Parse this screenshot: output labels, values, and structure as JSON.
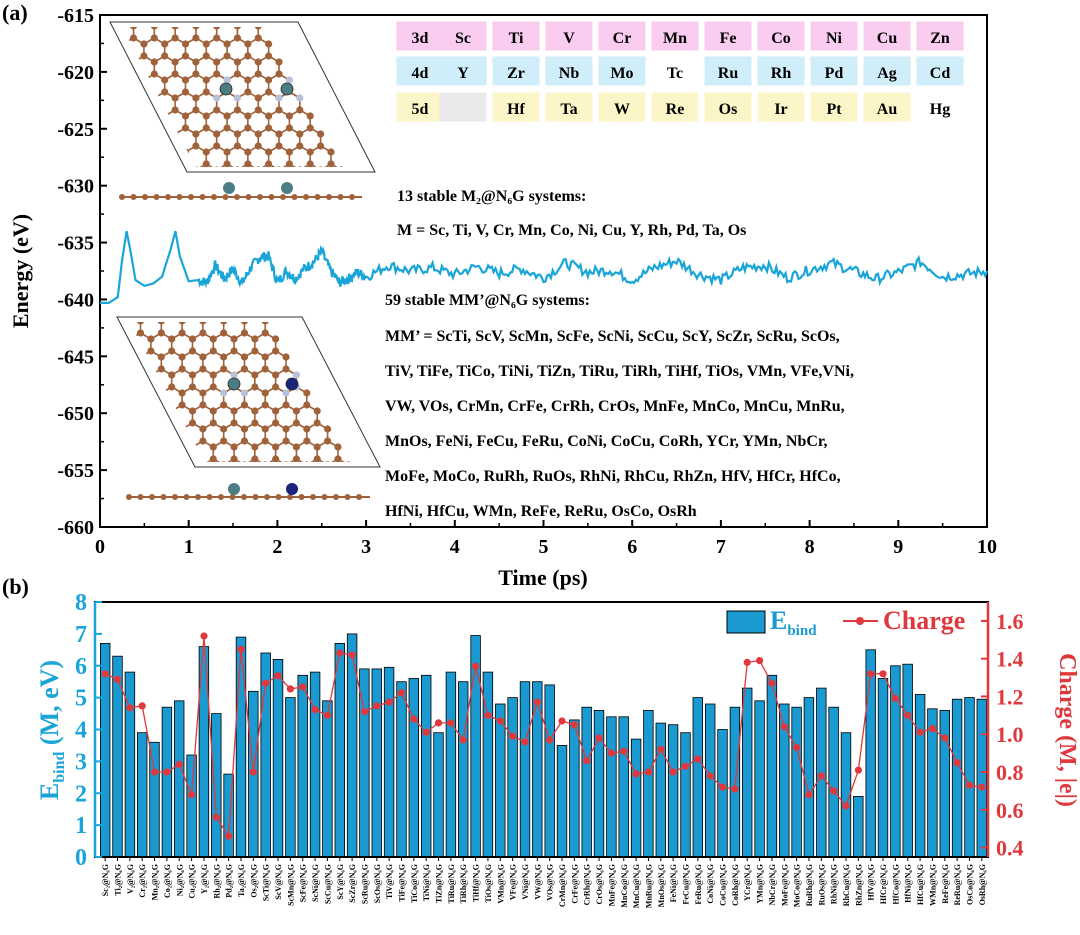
{
  "panels": {
    "a": "(a)",
    "b": "(b)"
  },
  "colors": {
    "md_line": "#1aa5d8",
    "bar_fill": "#1a9ad1",
    "charge": "#e0393d",
    "pink": "#f9ccf0",
    "blue": "#cfeefa",
    "yellow": "#fcf5c8",
    "gray": "#e9e9e9",
    "white": "#ffffff",
    "carbon": "#a0623a",
    "nitrogen": "#b7c1d9",
    "metal1": "#4d7d84",
    "metal2": "#1a237e"
  },
  "periodic_table": [
    [
      {
        "s": "3d",
        "c": "pink"
      },
      {
        "s": "Sc",
        "c": "pink"
      },
      {
        "s": "Ti",
        "c": "pink"
      },
      {
        "s": "V",
        "c": "pink"
      },
      {
        "s": "Cr",
        "c": "pink"
      },
      {
        "s": "Mn",
        "c": "pink"
      },
      {
        "s": "Fe",
        "c": "pink"
      },
      {
        "s": "Co",
        "c": "pink"
      },
      {
        "s": "Ni",
        "c": "pink"
      },
      {
        "s": "Cu",
        "c": "pink"
      },
      {
        "s": "Zn",
        "c": "pink"
      }
    ],
    [
      {
        "s": "4d",
        "c": "blue"
      },
      {
        "s": "Y",
        "c": "blue"
      },
      {
        "s": "Zr",
        "c": "blue"
      },
      {
        "s": "Nb",
        "c": "blue"
      },
      {
        "s": "Mo",
        "c": "blue"
      },
      {
        "s": "Tc",
        "c": "white"
      },
      {
        "s": "Ru",
        "c": "blue"
      },
      {
        "s": "Rh",
        "c": "blue"
      },
      {
        "s": "Pd",
        "c": "blue"
      },
      {
        "s": "Ag",
        "c": "blue"
      },
      {
        "s": "Cd",
        "c": "blue"
      }
    ],
    [
      {
        "s": "5d",
        "c": "yellow"
      },
      {
        "s": "",
        "c": "gray"
      },
      {
        "s": "Hf",
        "c": "yellow"
      },
      {
        "s": "Ta",
        "c": "yellow"
      },
      {
        "s": "W",
        "c": "yellow"
      },
      {
        "s": "Re",
        "c": "yellow"
      },
      {
        "s": "Os",
        "c": "yellow"
      },
      {
        "s": "Ir",
        "c": "yellow"
      },
      {
        "s": "Pt",
        "c": "yellow"
      },
      {
        "s": "Au",
        "c": "yellow"
      },
      {
        "s": "Hg",
        "c": "white"
      }
    ]
  ],
  "annotations": {
    "m2_title": "13 stable M₂@N₆G systems:",
    "m2_list": "M = Sc, Ti, V, Cr, Mn, Co, Ni, Cu, Y, Rh, Pd, Ta, Os",
    "mm_title": "59 stable  MM’@N₆G systems:",
    "mm_lines": [
      "MM’ = ScTi, ScV, ScMn, ScFe, ScNi, ScCu, ScY, ScZr, ScRu, ScOs,",
      "TiV, TiFe, TiCo, TiNi, TiZn, TiRu, TiRh, TiHf, TiOs, VMn, VFe,VNi,",
      "VW, VOs, CrMn, CrFe, CrRh, CrOs, MnFe, MnCo, MnCu, MnRu,",
      "MnOs, FeNi, FeCu, FeRu, CoNi, CoCu, CoRh, YCr, YMn, NbCr,",
      "MoFe, MoCo, RuRh, RuOs, RhNi, RhCu, RhZn, HfV, HfCr, HfCo,",
      "HfNi, HfCu, WMn, ReFe, ReRu, OsCo, OsRh"
    ]
  },
  "chart_data": [
    {
      "type": "line",
      "title": "",
      "xlabel": "Time (ps)",
      "ylabel": "Energy (eV)",
      "xlim": [
        0,
        10
      ],
      "ylim": [
        -660,
        -615
      ],
      "xticks": [
        "0",
        "1",
        "2",
        "3",
        "4",
        "5",
        "6",
        "7",
        "8",
        "9",
        "10"
      ],
      "yticks": [
        "-615",
        "-620",
        "-625",
        "-630",
        "-635",
        "-640",
        "-645",
        "-650",
        "-655",
        "-660"
      ],
      "series": [
        {
          "name": "MD energy",
          "x": [
            0,
            0.1,
            0.2,
            0.25,
            0.3,
            0.35,
            0.4,
            0.5,
            0.6,
            0.7,
            0.8,
            0.85,
            0.9,
            1.0,
            1.1,
            1.2,
            1.3,
            1.4,
            1.5,
            1.6,
            1.7,
            1.8,
            1.9,
            2.0,
            2.1,
            2.2,
            2.3,
            2.4,
            2.5,
            2.6,
            2.7,
            2.8,
            2.9,
            3.0,
            3.25,
            3.5,
            3.75,
            4.0,
            4.25,
            4.5,
            4.75,
            5.0,
            5.25,
            5.5,
            5.75,
            6.0,
            6.25,
            6.5,
            6.75,
            7.0,
            7.25,
            7.5,
            7.75,
            8.0,
            8.25,
            8.5,
            8.75,
            9.0,
            9.25,
            9.5,
            9.75,
            10.0
          ],
          "y": [
            -640.3,
            -640.3,
            -639.8,
            -636.5,
            -634.0,
            -636.0,
            -638.3,
            -638.8,
            -638.6,
            -638.0,
            -635.5,
            -634.0,
            -636.2,
            -638.4,
            -638.3,
            -638.5,
            -637.0,
            -638.2,
            -637.3,
            -638.6,
            -637.2,
            -636.3,
            -636.2,
            -638.5,
            -637.5,
            -638.2,
            -637.3,
            -636.8,
            -635.8,
            -637.5,
            -638.5,
            -638.2,
            -637.6,
            -638.0,
            -637.0,
            -637.5,
            -637.2,
            -637.8,
            -637.1,
            -637.7,
            -637.3,
            -638.1,
            -636.8,
            -637.6,
            -637.4,
            -638.3,
            -637.2,
            -636.6,
            -637.8,
            -638.3,
            -637.2,
            -637.0,
            -638.1,
            -637.4,
            -636.8,
            -637.5,
            -638.2,
            -637.6,
            -636.7,
            -638.0,
            -637.8,
            -637.5
          ]
        }
      ]
    },
    {
      "type": "bar",
      "title": "",
      "xlabel": "",
      "ylabel": "E_bind (M, eV)",
      "ylabel2": "Charge (M, |e|)",
      "ylim": [
        0,
        8
      ],
      "ylim2": [
        0.35,
        1.7
      ],
      "yticks": [
        "0",
        "1",
        "2",
        "3",
        "4",
        "5",
        "6",
        "7",
        "8"
      ],
      "yticks2": [
        "0.4",
        "0.6",
        "0.8",
        "1.0",
        "1.2",
        "1.4",
        "1.6"
      ],
      "legend": {
        "bar": "E",
        "bar_sub": "bind",
        "line": "Charge",
        "position": "top-right"
      },
      "categories": [
        "Sc₂@N₆G",
        "Ti₂@N₆G",
        "V₂@N₆G",
        "Cr₂@N₆G",
        "Mn₂@N₆G",
        "Co₂@N₆G",
        "Ni₂@N₆G",
        "Cu₂@N₆G",
        "Y₂@N₆G",
        "Rh₂@N₆G",
        "Pd₂@N₆G",
        "Ta₂@N₆G",
        "Os₂@N₆G",
        "ScTi@N₆G",
        "ScV@N₆G",
        "ScMn@N₆G",
        "ScFe@N₆G",
        "ScNi@N₆G",
        "ScCu@N₆G",
        "ScY@N₆G",
        "ScZr@N₆G",
        "ScRu@N₆G",
        "ScOs@N₆G",
        "TiV@N₆G",
        "TiFe@N₆G",
        "TiCo@N₆G",
        "TiNi@N₆G",
        "TiZn@N₆G",
        "TiRu@N₆G",
        "TiRh@N₆G",
        "TiHf@N₆G",
        "TiOs@N₆G",
        "VMn@N₆G",
        "VFe@N₆G",
        "VNi@N₆G",
        "VW@N₆G",
        "VOs@N₆G",
        "CrMn@N₆G",
        "CrFe@N₆G",
        "CrRh@N₆G",
        "CrOs@N₆G",
        "MnFe@N₆G",
        "MnCo@N₆G",
        "MnCu@N₆G",
        "MnRu@N₆G",
        "MnOs@N₆G",
        "FeNi@N₆G",
        "FeCu@N₆G",
        "FeRu@N₆G",
        "CoNi@N₆G",
        "CoCu@N₆G",
        "CoRh@N₆G",
        "YCr@N₆G",
        "YMn@N₆G",
        "NbCr@N₆G",
        "MoFe@N₆G",
        "MoCo@N₆G",
        "RuRh@N₆G",
        "RuOs@N₆G",
        "RhNi@N₆G",
        "RhCu@N₆G",
        "RhZn@N₆G",
        "HfV@N₆G",
        "HfCr@N₆G",
        "HfCo@N₆G",
        "HfNi@N₆G",
        "HfCu@N₆G",
        "WMn@N₆G",
        "ReFe@N₆G",
        "ReRu@N₆G",
        "OsCo@N₆G",
        "OsRh@N₆G"
      ],
      "series": [
        {
          "name": "E_bind",
          "type": "bar",
          "values": [
            6.7,
            6.3,
            5.8,
            3.9,
            3.6,
            4.7,
            4.9,
            3.2,
            6.6,
            4.5,
            2.6,
            6.9,
            5.2,
            6.4,
            6.2,
            5.0,
            5.7,
            5.8,
            4.9,
            6.7,
            7.0,
            5.9,
            5.9,
            5.95,
            5.5,
            5.6,
            5.7,
            3.9,
            5.8,
            5.5,
            6.95,
            5.8,
            4.8,
            5.0,
            5.5,
            5.5,
            5.4,
            3.5,
            4.3,
            4.7,
            4.6,
            4.4,
            4.4,
            3.7,
            4.6,
            4.2,
            4.15,
            3.9,
            5.0,
            4.8,
            4.0,
            4.7,
            5.3,
            4.9,
            5.7,
            4.8,
            4.7,
            5.0,
            5.3,
            4.7,
            3.9,
            1.9,
            6.5,
            5.6,
            6.0,
            6.05,
            5.1,
            4.65,
            4.6,
            4.95,
            5.0,
            4.95
          ]
        },
        {
          "name": "Charge",
          "type": "line",
          "axis": "right",
          "values": [
            1.32,
            1.29,
            1.14,
            1.15,
            0.8,
            0.8,
            0.84,
            0.68,
            1.52,
            0.56,
            0.46,
            1.45,
            0.8,
            1.27,
            1.31,
            1.24,
            1.25,
            1.13,
            1.1,
            1.43,
            1.42,
            1.12,
            1.15,
            1.17,
            1.22,
            1.08,
            1.01,
            1.06,
            1.06,
            0.97,
            1.36,
            1.1,
            1.07,
            0.99,
            0.96,
            1.17,
            0.97,
            1.07,
            1.05,
            0.86,
            0.98,
            0.9,
            0.91,
            0.79,
            0.8,
            0.92,
            0.8,
            0.83,
            0.87,
            0.78,
            0.72,
            0.71,
            1.38,
            1.39,
            1.27,
            1.04,
            0.93,
            0.68,
            0.78,
            0.7,
            0.62,
            0.81,
            1.32,
            1.32,
            1.19,
            1.1,
            1.01,
            1.03,
            0.98,
            0.85,
            0.73,
            0.72
          ]
        }
      ]
    }
  ]
}
